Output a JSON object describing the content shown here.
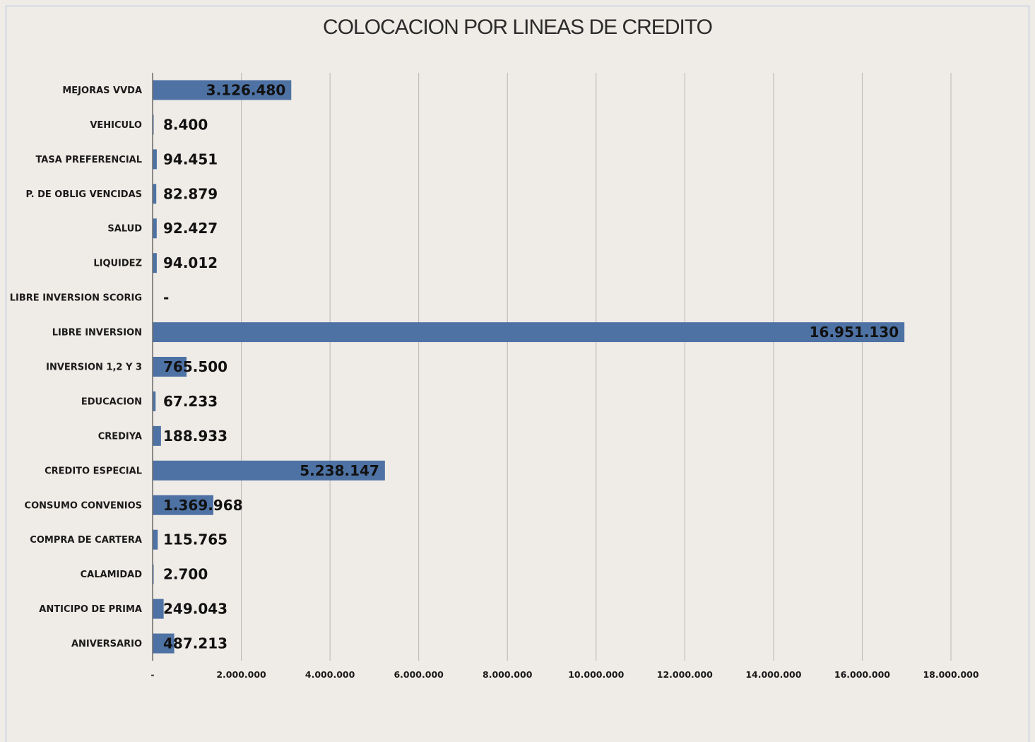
{
  "chart_data": {
    "type": "bar",
    "orientation": "horizontal",
    "title": "COLOCACION POR LINEAS DE CREDITO",
    "xlabel": "",
    "ylabel": "",
    "xlim": [
      0,
      18000000
    ],
    "grid": true,
    "legend": "none",
    "bar_color": "#4e72a4",
    "categories": [
      "MEJORAS VVDA",
      "VEHICULO",
      "TASA PREFERENCIAL",
      "P. DE OBLIG VENCIDAS",
      "SALUD",
      "LIQUIDEZ",
      "LIBRE INVERSION SCORIG",
      "LIBRE INVERSION",
      "INVERSION 1,2 Y 3",
      "EDUCACION",
      "CREDIYA",
      "CREDITO ESPECIAL",
      "CONSUMO CONVENIOS",
      "COMPRA DE CARTERA",
      "CALAMIDAD",
      "ANTICIPO DE PRIMA",
      "ANIVERSARIO"
    ],
    "values": [
      3126480,
      8400,
      94451,
      82879,
      92427,
      94012,
      0,
      16951130,
      765500,
      67233,
      188933,
      5238147,
      1369968,
      115765,
      2700,
      249043,
      487213
    ],
    "data_labels": [
      "3.126.480",
      "8.400",
      "94.451",
      "82.879",
      "92.427",
      "94.012",
      "-",
      "16.951.130",
      "765.500",
      "67.233",
      "188.933",
      "5.238.147",
      "1.369.968",
      "115.765",
      "2.700",
      "249.043",
      "487.213"
    ],
    "x_ticks": [
      0,
      2000000,
      4000000,
      6000000,
      8000000,
      10000000,
      12000000,
      14000000,
      16000000,
      18000000
    ],
    "x_tick_labels": [
      "-",
      "2.000.000",
      "4.000.000",
      "6.000.000",
      "8.000.000",
      "10.000.000",
      "12.000.000",
      "14.000.000",
      "16.000.000",
      "18.000.000"
    ]
  }
}
